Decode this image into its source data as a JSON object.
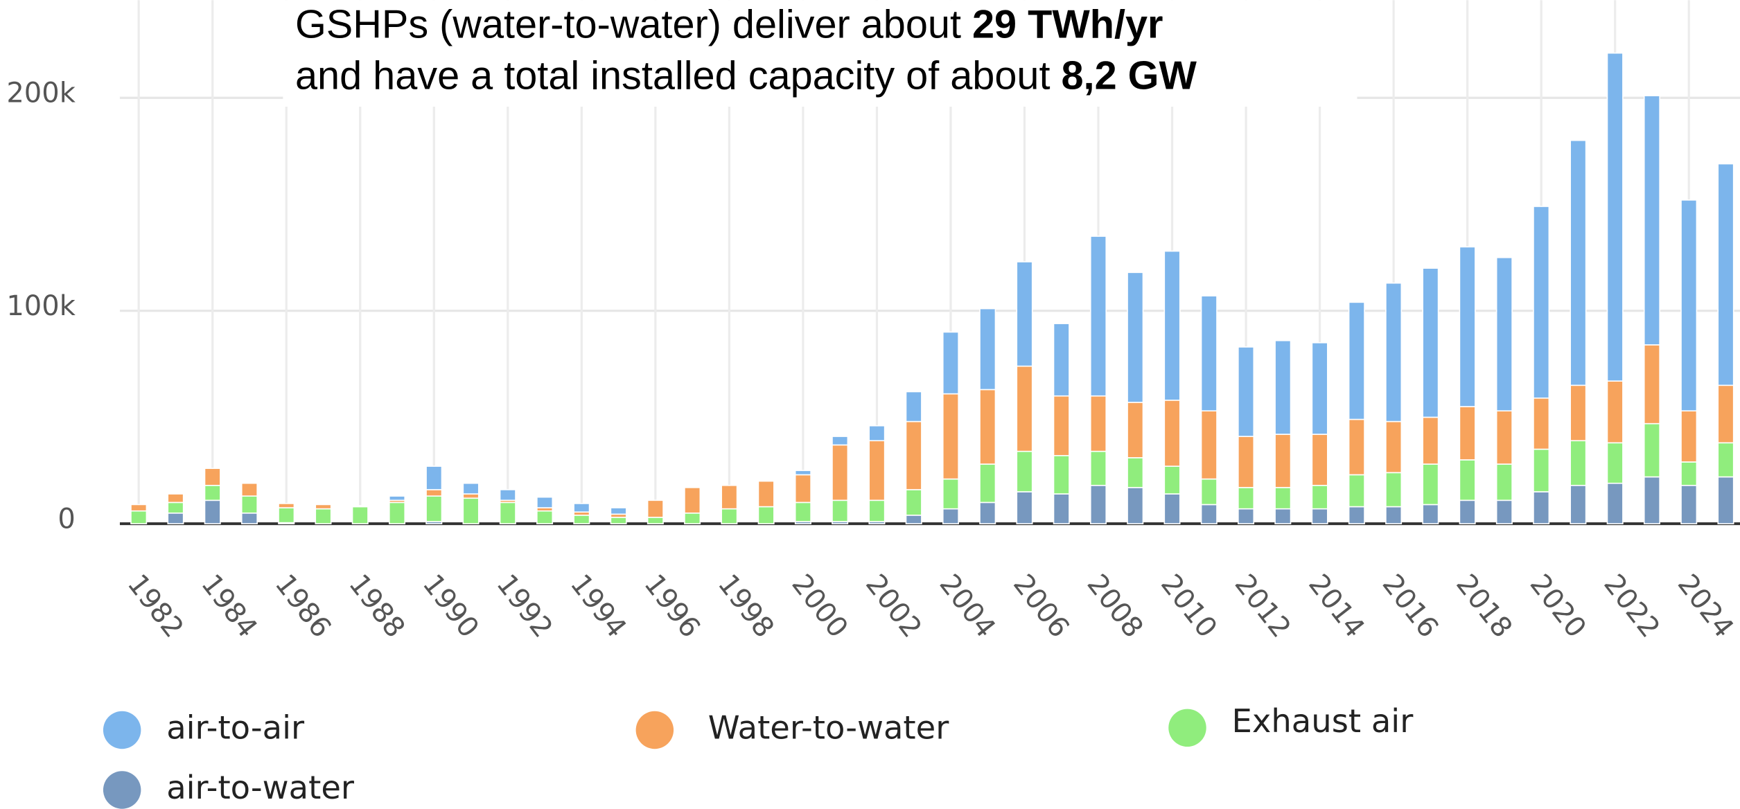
{
  "chart_data": {
    "type": "stacked_bar",
    "annotation": [
      {
        "text": "GSHPs (water-to-water) deliver about",
        "bold": "29 TWh/yr"
      },
      {
        "text": "and have a total installed capacity of about",
        "bold": "8,2 GW"
      }
    ],
    "categories": [
      "1982",
      null,
      "1984",
      null,
      "1986",
      null,
      "1988",
      null,
      "1990",
      null,
      "1992",
      null,
      "1994",
      null,
      "1996",
      null,
      "1998",
      null,
      "2000",
      null,
      "2002",
      null,
      "2004",
      null,
      "2006",
      null,
      "2008",
      null,
      "2010",
      null,
      "2012",
      null,
      "2014",
      null,
      "2016",
      null,
      "2018",
      null,
      "2020",
      null,
      "2022",
      null,
      "2024",
      null
    ],
    "series": [
      {
        "name": "air-to-air",
        "color": "#7cb5ec",
        "values": [
          0,
          0,
          0,
          0,
          0,
          0,
          0,
          2000,
          11000,
          5000,
          5000,
          5000,
          4000,
          3000,
          0,
          0,
          0,
          0,
          2000,
          4000,
          7000,
          14000,
          29000,
          38000,
          49000,
          34000,
          75000,
          61000,
          70000,
          54000,
          42000,
          44000,
          43000,
          55000,
          65000,
          70000,
          75000,
          72000,
          90000,
          115000,
          154000,
          117000,
          99000,
          104000
        ]
      },
      {
        "name": "Water-to-water",
        "color": "#f7a35c",
        "values": [
          3000,
          4000,
          8000,
          6000,
          2000,
          2000,
          500,
          1000,
          3000,
          2000,
          1000,
          1500,
          1500,
          1500,
          8000,
          12000,
          11000,
          12000,
          13000,
          26000,
          28000,
          32000,
          40000,
          35000,
          40000,
          28000,
          26000,
          26000,
          31000,
          32000,
          24000,
          25000,
          24000,
          26000,
          24000,
          22000,
          25000,
          25000,
          24000,
          26000,
          29000,
          37000,
          24000,
          27000
        ]
      },
      {
        "name": "Exhaust air",
        "color": "#90ed7d",
        "values": [
          6000,
          5000,
          7000,
          8000,
          7000,
          7000,
          8000,
          10000,
          12000,
          12000,
          10000,
          6000,
          4000,
          3000,
          3000,
          5000,
          7000,
          8000,
          9000,
          10000,
          10000,
          12000,
          14000,
          18000,
          19000,
          18000,
          16000,
          14000,
          13000,
          12000,
          10000,
          10000,
          11000,
          15000,
          16000,
          19000,
          19000,
          17000,
          20000,
          21000,
          19000,
          25000,
          11000,
          16000
        ]
      },
      {
        "name": "air-to-water",
        "color": "#7798bf",
        "values": [
          0,
          5000,
          11000,
          5000,
          500,
          0,
          0,
          0,
          1000,
          0,
          0,
          0,
          0,
          0,
          0,
          0,
          0,
          0,
          1000,
          1000,
          1000,
          4000,
          7000,
          10000,
          15000,
          14000,
          18000,
          17000,
          14000,
          9000,
          7000,
          7000,
          7000,
          8000,
          8000,
          9000,
          11000,
          11000,
          15000,
          18000,
          19000,
          22000,
          18000,
          22000
        ]
      }
    ],
    "ylim": [
      0,
      245000
    ],
    "yticks": [
      {
        "value": 0,
        "label": "0"
      },
      {
        "value": 100000,
        "label": "100k"
      },
      {
        "value": 200000,
        "label": "200k"
      }
    ],
    "grid": true
  }
}
